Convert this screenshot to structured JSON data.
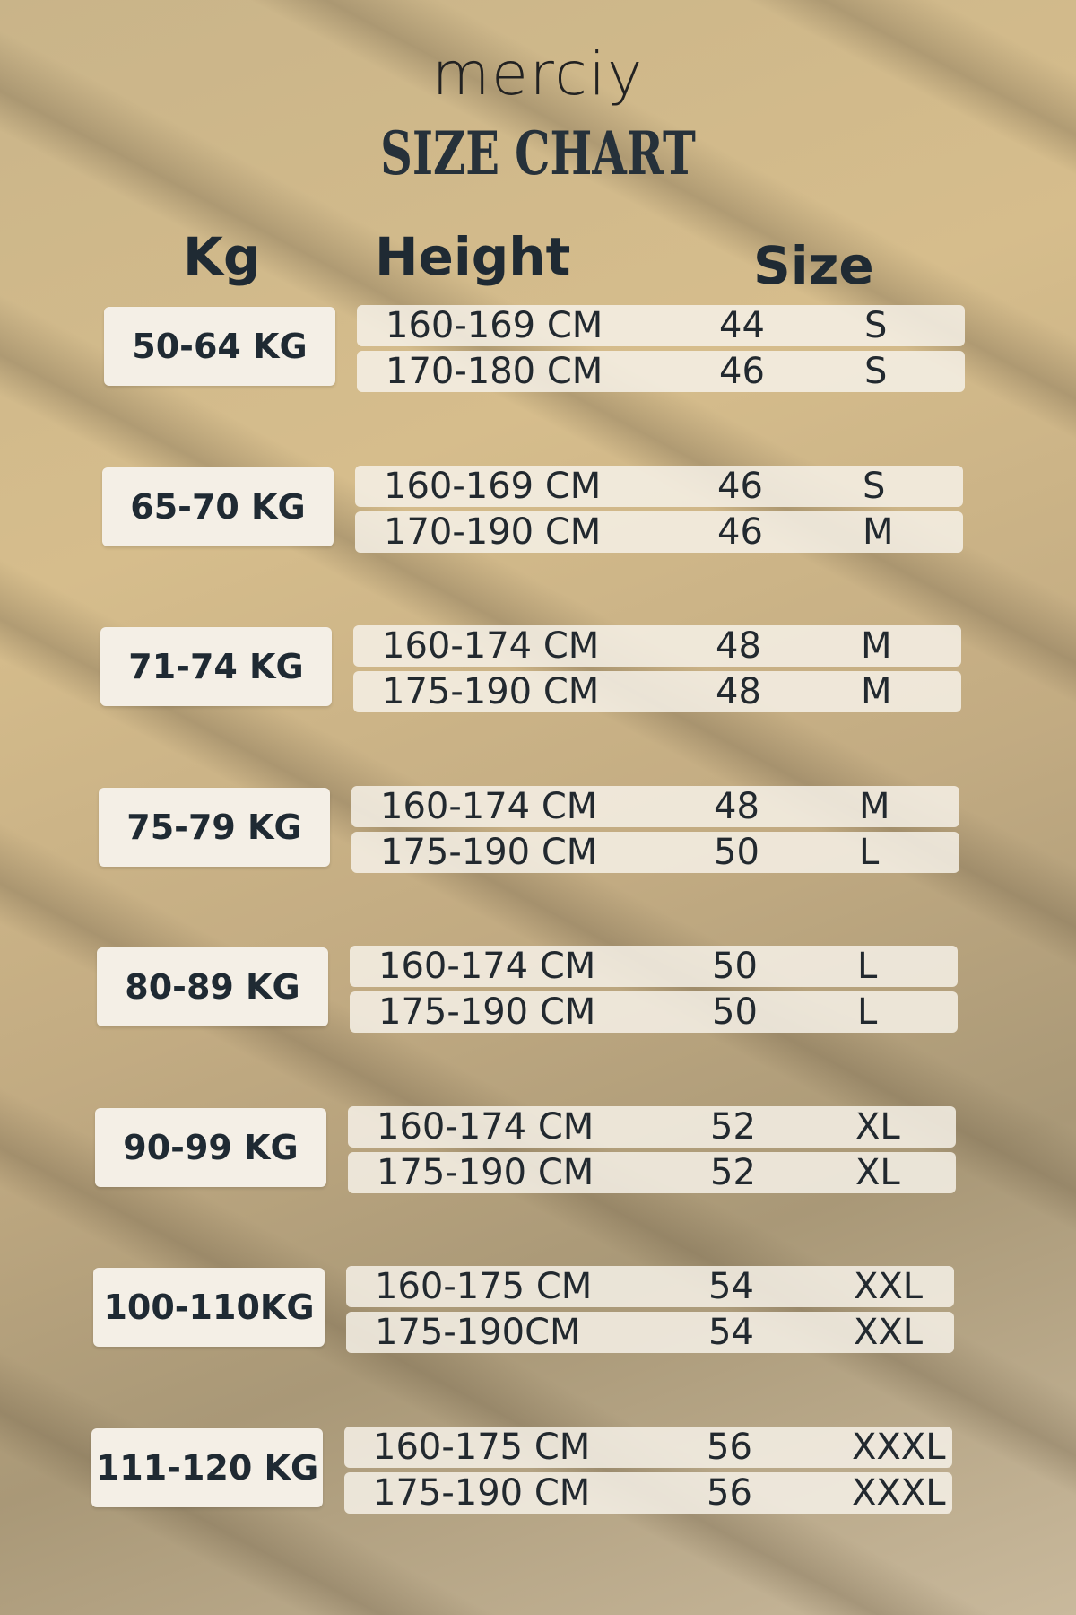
{
  "brand": "merciy",
  "title": "SIZE CHART",
  "headers": {
    "kg": "Kg",
    "height": "Height",
    "size": "Size"
  },
  "groups": [
    {
      "kg": "50-64 KG",
      "rows": [
        {
          "height": "160-169 CM",
          "num": "44",
          "letter": "S"
        },
        {
          "height": "170-180 CM",
          "num": "46",
          "letter": "S"
        }
      ]
    },
    {
      "kg": "65-70 KG",
      "rows": [
        {
          "height": "160-169 CM",
          "num": "46",
          "letter": "S"
        },
        {
          "height": "170-190 CM",
          "num": "46",
          "letter": "M"
        }
      ]
    },
    {
      "kg": "71-74 KG",
      "rows": [
        {
          "height": "160-174 CM",
          "num": "48",
          "letter": "M"
        },
        {
          "height": "175-190 CM",
          "num": "48",
          "letter": "M"
        }
      ]
    },
    {
      "kg": "75-79 KG",
      "rows": [
        {
          "height": "160-174 CM",
          "num": "48",
          "letter": "M"
        },
        {
          "height": "175-190 CM",
          "num": "50",
          "letter": "L"
        }
      ]
    },
    {
      "kg": "80-89 KG",
      "rows": [
        {
          "height": "160-174 CM",
          "num": "50",
          "letter": "L"
        },
        {
          "height": "175-190 CM",
          "num": "50",
          "letter": "L"
        }
      ]
    },
    {
      "kg": "90-99 KG",
      "rows": [
        {
          "height": "160-174 CM",
          "num": "52",
          "letter": "XL"
        },
        {
          "height": "175-190 CM",
          "num": "52",
          "letter": "XL"
        }
      ]
    },
    {
      "kg": "100-110KG",
      "rows": [
        {
          "height": "160-175 CM",
          "num": "54",
          "letter": "XXL"
        },
        {
          "height": "175-190CM",
          "num": "54",
          "letter": "XXL"
        }
      ]
    },
    {
      "kg": "111-120 KG",
      "rows": [
        {
          "height": "160-175 CM",
          "num": "56",
          "letter": "XXXL"
        },
        {
          "height": "175-190 CM",
          "num": "56",
          "letter": "XXXL"
        }
      ]
    }
  ]
}
